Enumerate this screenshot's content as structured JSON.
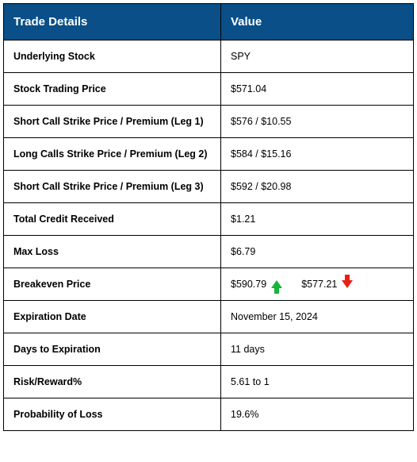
{
  "table": {
    "header_bg": "#0a4f87",
    "header_fg": "#ffffff",
    "border_color": "#000000",
    "up_arrow_color": "#17b43c",
    "down_arrow_color": "#ea1f12",
    "label_fontsize": 12.5,
    "value_fontsize": 12.5,
    "header_fontsize": 15,
    "columns": [
      "Trade Details",
      "Value"
    ],
    "rows": [
      {
        "label": "Underlying Stock",
        "value": "SPY"
      },
      {
        "label": "Stock Trading Price",
        "value": "$571.04"
      },
      {
        "label": "Short Call Strike Price / Premium (Leg 1)",
        "value": "$576 / $10.55"
      },
      {
        "label": "Long Calls Strike Price / Premium (Leg 2)",
        "value": "$584 / $15.16"
      },
      {
        "label": "Short Call Strike Price / Premium (Leg 3)",
        "value": "$592 / $20.98"
      },
      {
        "label": "Total Credit Received",
        "value": "$1.21"
      },
      {
        "label": "Max Loss",
        "value": "$6.79"
      },
      {
        "label": "Breakeven Price",
        "value_up": "$590.79",
        "value_down": "$577.21",
        "type": "breakeven"
      },
      {
        "label": "Expiration Date",
        "value": "November 15, 2024"
      },
      {
        "label": "Days to Expiration",
        "value": "11 days"
      },
      {
        "label": "Risk/Reward%",
        "value": "5.61 to 1"
      },
      {
        "label": "Probability of Loss",
        "value": "19.6%"
      }
    ]
  }
}
